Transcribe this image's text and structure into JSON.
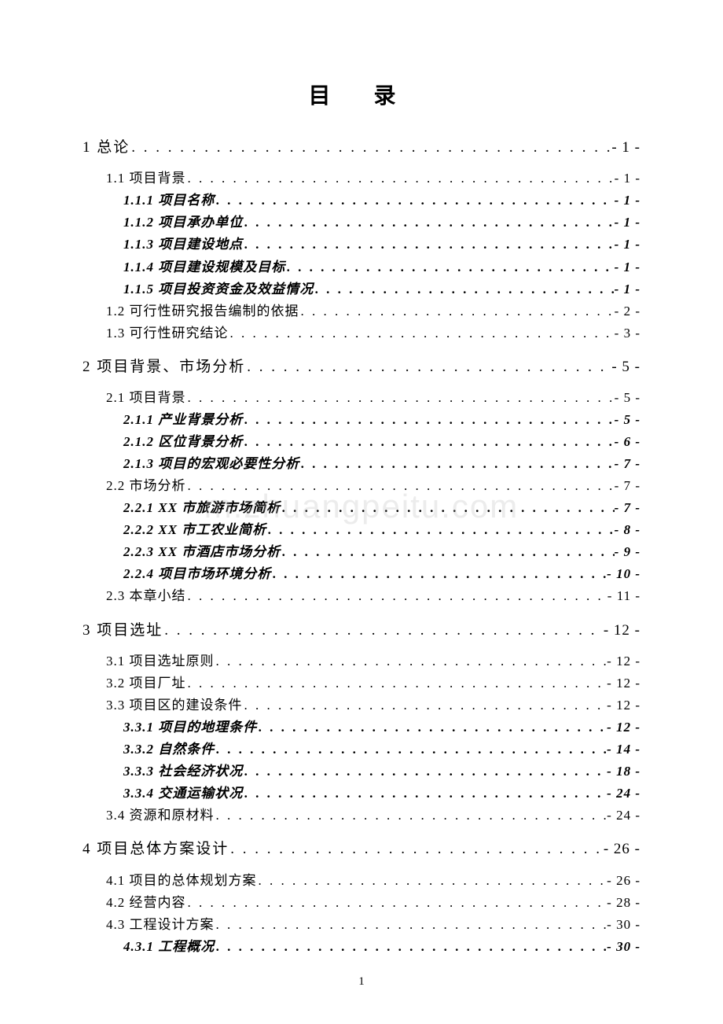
{
  "title": "目 录",
  "watermark": "m.zhuangpeitu.com",
  "pageNumber": "1",
  "entries": [
    {
      "level": 1,
      "label": "1 总论",
      "page": "- 1 -"
    },
    {
      "level": 2,
      "label": "1.1 项目背景",
      "page": "- 1 -",
      "groupStart": true
    },
    {
      "level": 3,
      "label": "1.1.1 项目名称",
      "page": "- 1 -"
    },
    {
      "level": 3,
      "label": "1.1.2 项目承办单位",
      "page": "- 1 -"
    },
    {
      "level": 3,
      "label": "1.1.3 项目建设地点",
      "page": "- 1 -"
    },
    {
      "level": 3,
      "label": "1.1.4 项目建设规模及目标",
      "page": "- 1 -"
    },
    {
      "level": 3,
      "label": "1.1.5 项目投资资金及效益情况",
      "page": "- 1 -"
    },
    {
      "level": 2,
      "label": "1.2 可行性研究报告编制的依据",
      "page": "- 2 -"
    },
    {
      "level": 2,
      "label": "1.3 可行性研究结论",
      "page": "- 3 -"
    },
    {
      "level": 1,
      "label": "2 项目背景、市场分析",
      "page": "- 5 -"
    },
    {
      "level": 2,
      "label": "2.1 项目背景",
      "page": "- 5 -",
      "groupStart": true
    },
    {
      "level": 3,
      "label": "2.1.1 产业背景分析",
      "page": "- 5 -"
    },
    {
      "level": 3,
      "label": "2.1.2 区位背景分析",
      "page": "- 6 -"
    },
    {
      "level": 3,
      "label": "2.1.3 项目的宏观必要性分析",
      "page": "- 7 -"
    },
    {
      "level": 2,
      "label": "2.2 市场分析",
      "page": "- 7 -"
    },
    {
      "level": 3,
      "label": "2.2.1 XX 市旅游市场简析",
      "page": "- 7 -"
    },
    {
      "level": 3,
      "label": "2.2.2 XX 市工农业简析",
      "page": "- 8 -"
    },
    {
      "level": 3,
      "label": "2.2.3 XX 市酒店市场分析",
      "page": "- 9 -"
    },
    {
      "level": 3,
      "label": "2.2.4 项目市场环境分析",
      "page": "- 10 -"
    },
    {
      "level": 2,
      "label": "2.3 本章小结",
      "page": "- 11 -"
    },
    {
      "level": 1,
      "label": "3 项目选址",
      "page": "- 12 -"
    },
    {
      "level": 2,
      "label": "3.1 项目选址原则",
      "page": "- 12 -",
      "groupStart": true
    },
    {
      "level": 2,
      "label": "3.2 项目厂址",
      "page": "- 12 -"
    },
    {
      "level": 2,
      "label": "3.3 项目区的建设条件",
      "page": "- 12 -"
    },
    {
      "level": 3,
      "label": "3.3.1 项目的地理条件",
      "page": "- 12 -"
    },
    {
      "level": 3,
      "label": "3.3.2 自然条件",
      "page": "- 14 -"
    },
    {
      "level": 3,
      "label": "3.3.3 社会经济状况",
      "page": "- 18 -"
    },
    {
      "level": 3,
      "label": "3.3.4 交通运输状况",
      "page": "- 24 -"
    },
    {
      "level": 2,
      "label": "3.4 资源和原材料",
      "page": "- 24 -"
    },
    {
      "level": 1,
      "label": "4 项目总体方案设计",
      "page": "- 26 -"
    },
    {
      "level": 2,
      "label": "4.1 项目的总体规划方案",
      "page": "- 26 -",
      "groupStart": true
    },
    {
      "level": 2,
      "label": "4.2 经营内容",
      "page": "- 28 -"
    },
    {
      "level": 2,
      "label": "4.3 工程设计方案",
      "page": "- 30 -"
    },
    {
      "level": 3,
      "label": "4.3.1 工程概况",
      "page": "- 30 -"
    }
  ]
}
